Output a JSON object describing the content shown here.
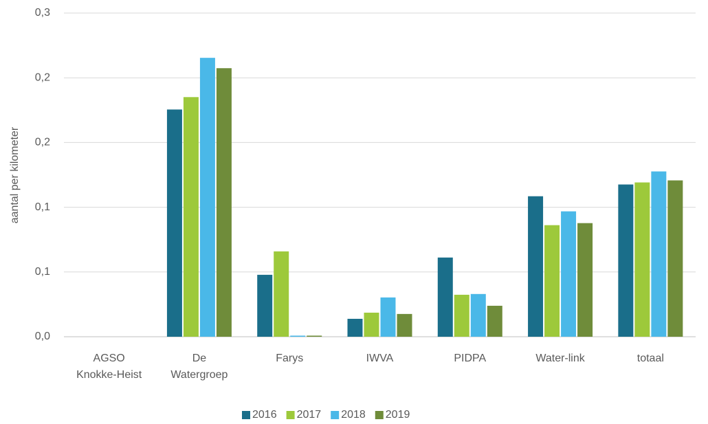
{
  "chart_data": {
    "type": "bar",
    "y_label": "aantal per kilometer",
    "categories": [
      "AGSO Knokke-Heist",
      "De Watergroep",
      "Farys",
      "IWVA",
      "PIDPA",
      "Water-link",
      "totaal"
    ],
    "series": [
      {
        "name": "2016",
        "color": "#1a6e8a",
        "values": [
          0,
          0.2106,
          0.0574,
          0.0166,
          0.0734,
          0.1302,
          0.1411
        ]
      },
      {
        "name": "2017",
        "color": "#9dc93b",
        "values": [
          0,
          0.2221,
          0.0791,
          0.0223,
          0.0389,
          0.1034,
          0.143
        ]
      },
      {
        "name": "2018",
        "color": "#4ab8e8",
        "values": [
          0,
          0.2585,
          0.001,
          0.0364,
          0.0396,
          0.1162,
          0.1532
        ]
      },
      {
        "name": "2019",
        "color": "#6f8c3a",
        "values": [
          0,
          0.2489,
          0.001,
          0.0211,
          0.0287,
          0.1053,
          0.1449
        ]
      }
    ],
    "ylim": [
      0,
      0.3
    ],
    "yticks": [
      {
        "value": 0,
        "label": "0,0"
      },
      {
        "value": 0.06,
        "label": "0,1"
      },
      {
        "value": 0.12,
        "label": "0,1"
      },
      {
        "value": 0.18,
        "label": "0,2"
      },
      {
        "value": 0.24,
        "label": "0,2"
      },
      {
        "value": 0.3,
        "label": "0,3"
      }
    ],
    "grid": true,
    "legend": "bottom"
  }
}
